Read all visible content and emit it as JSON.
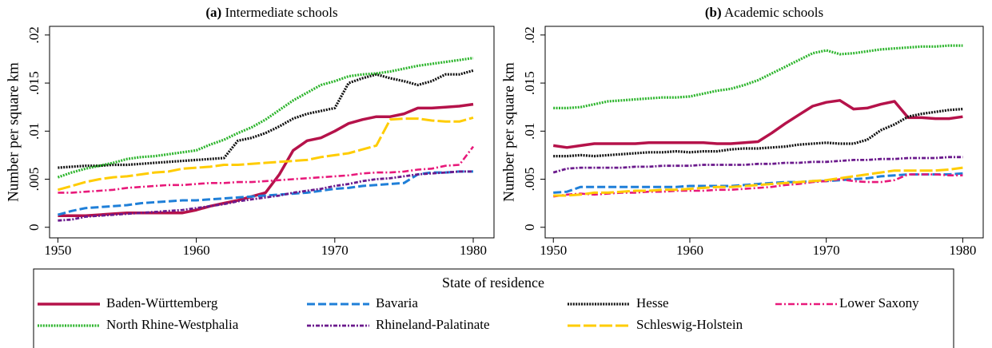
{
  "chart_data": [
    {
      "type": "line",
      "panel": "(a)",
      "title": "Intermediate schools",
      "y_label": "Number per square km",
      "xlim": [
        1949.4,
        1981.5
      ],
      "xticks": [
        1950,
        1960,
        1970,
        1980
      ],
      "ylim": [
        -0.0011,
        0.0209
      ],
      "yticks": [
        0,
        {
          "value": 0.005,
          "label": ".005"
        },
        {
          "value": 0.01,
          "label": ".01"
        },
        {
          "value": 0.015,
          "label": ".015"
        },
        {
          "value": 0.02,
          "label": ".02"
        }
      ],
      "x": [
        1950,
        1951,
        1952,
        1953,
        1954,
        1955,
        1956,
        1957,
        1958,
        1959,
        1960,
        1961,
        1962,
        1963,
        1964,
        1965,
        1966,
        1967,
        1968,
        1969,
        1970,
        1971,
        1972,
        1973,
        1974,
        1975,
        1976,
        1977,
        1978,
        1979,
        1980
      ],
      "series": [
        {
          "name": "Baden-Württemberg",
          "color": "#b5124a",
          "style": "solid",
          "values": [
            0.0012,
            0.0012,
            0.0012,
            0.0013,
            0.0014,
            0.0015,
            0.0015,
            0.0015,
            0.0015,
            0.0015,
            0.0018,
            0.0022,
            0.0025,
            0.0028,
            0.0032,
            0.0036,
            0.0055,
            0.008,
            0.009,
            0.0093,
            0.01,
            0.0108,
            0.0112,
            0.0115,
            0.0115,
            0.0118,
            0.0124,
            0.0124,
            0.0125,
            0.0126,
            0.0128
          ]
        },
        {
          "name": "Bavaria",
          "color": "#1f7fd8",
          "style": "dashed",
          "values": [
            0.0013,
            0.0017,
            0.002,
            0.0021,
            0.0022,
            0.0023,
            0.0025,
            0.0026,
            0.0027,
            0.0028,
            0.0028,
            0.0029,
            0.003,
            0.0031,
            0.0032,
            0.0033,
            0.0034,
            0.0035,
            0.0036,
            0.0038,
            0.004,
            0.0041,
            0.0043,
            0.0044,
            0.0045,
            0.0046,
            0.0055,
            0.0057,
            0.0057,
            0.0058,
            0.0058
          ]
        },
        {
          "name": "Hesse",
          "color": "#111111",
          "style": "dotted",
          "values": [
            0.0062,
            0.0063,
            0.0064,
            0.0064,
            0.0065,
            0.0065,
            0.0066,
            0.0067,
            0.0068,
            0.0069,
            0.007,
            0.0071,
            0.0072,
            0.009,
            0.0093,
            0.0098,
            0.0105,
            0.0113,
            0.0118,
            0.0121,
            0.0124,
            0.015,
            0.0155,
            0.0159,
            0.0155,
            0.0152,
            0.0148,
            0.0152,
            0.0159,
            0.0159,
            0.0163
          ]
        },
        {
          "name": "Lower Saxony",
          "color": "#e8197a",
          "style": "dashdot",
          "values": [
            0.0036,
            0.0036,
            0.0037,
            0.0038,
            0.0039,
            0.0041,
            0.0042,
            0.0043,
            0.0044,
            0.0044,
            0.0045,
            0.0046,
            0.0046,
            0.0047,
            0.0047,
            0.0048,
            0.0049,
            0.005,
            0.0051,
            0.0052,
            0.0053,
            0.0054,
            0.0056,
            0.0057,
            0.0057,
            0.0058,
            0.006,
            0.0061,
            0.0064,
            0.0065,
            0.0084
          ]
        },
        {
          "name": "North Rhine-Westphalia",
          "color": "#2db52d",
          "style": "dotted",
          "values": [
            0.0052,
            0.0057,
            0.0061,
            0.0064,
            0.0067,
            0.0071,
            0.0073,
            0.0074,
            0.0076,
            0.0078,
            0.008,
            0.0086,
            0.0091,
            0.0098,
            0.0104,
            0.0112,
            0.0122,
            0.0132,
            0.014,
            0.0148,
            0.0152,
            0.0157,
            0.0159,
            0.016,
            0.0162,
            0.0165,
            0.0168,
            0.017,
            0.0172,
            0.0174,
            0.0176
          ]
        },
        {
          "name": "Rhineland-Palatinate",
          "color": "#6b1a8c",
          "style": "dashdot2",
          "values": [
            0.0007,
            0.0008,
            0.0011,
            0.0012,
            0.0013,
            0.0014,
            0.0015,
            0.0016,
            0.0017,
            0.0018,
            0.002,
            0.0022,
            0.0024,
            0.0027,
            0.0029,
            0.0031,
            0.0033,
            0.0036,
            0.0038,
            0.004,
            0.0043,
            0.0045,
            0.0048,
            0.005,
            0.0051,
            0.0053,
            0.0055,
            0.0056,
            0.0057,
            0.0058,
            0.0058
          ]
        },
        {
          "name": "Schleswig-Holstein",
          "color": "#ffcc00",
          "style": "longdash",
          "values": [
            0.0039,
            0.0043,
            0.0047,
            0.005,
            0.0052,
            0.0053,
            0.0055,
            0.0057,
            0.0058,
            0.0061,
            0.0062,
            0.0063,
            0.0065,
            0.0065,
            0.0066,
            0.0067,
            0.0068,
            0.0069,
            0.007,
            0.0073,
            0.0075,
            0.0077,
            0.0081,
            0.0085,
            0.0112,
            0.0113,
            0.0113,
            0.0111,
            0.011,
            0.011,
            0.0114
          ]
        }
      ]
    },
    {
      "type": "line",
      "panel": "(b)",
      "title": "Academic schools",
      "y_label": "Number per square km",
      "xlim": [
        1949.4,
        1981.5
      ],
      "xticks": [
        1950,
        1960,
        1970,
        1980
      ],
      "ylim": [
        -0.0011,
        0.0209
      ],
      "yticks": [
        0,
        {
          "value": 0.005,
          "label": ".005"
        },
        {
          "value": 0.01,
          "label": ".01"
        },
        {
          "value": 0.015,
          "label": ".015"
        },
        {
          "value": 0.02,
          "label": ".02"
        }
      ],
      "x": [
        1950,
        1951,
        1952,
        1953,
        1954,
        1955,
        1956,
        1957,
        1958,
        1959,
        1960,
        1961,
        1962,
        1963,
        1964,
        1965,
        1966,
        1967,
        1968,
        1969,
        1970,
        1971,
        1972,
        1973,
        1974,
        1975,
        1976,
        1977,
        1978,
        1979,
        1980
      ],
      "series": [
        {
          "name": "Baden-Württemberg",
          "color": "#b5124a",
          "style": "solid",
          "values": [
            0.0085,
            0.0083,
            0.0085,
            0.0087,
            0.0087,
            0.0087,
            0.0087,
            0.0088,
            0.0088,
            0.0088,
            0.0088,
            0.0088,
            0.0087,
            0.0087,
            0.0088,
            0.0089,
            0.0098,
            0.0108,
            0.0117,
            0.0126,
            0.013,
            0.0132,
            0.0123,
            0.0124,
            0.0128,
            0.0131,
            0.0114,
            0.0114,
            0.0113,
            0.0113,
            0.0115
          ]
        },
        {
          "name": "Bavaria",
          "color": "#1f7fd8",
          "style": "dashed",
          "values": [
            0.0036,
            0.0037,
            0.0042,
            0.0042,
            0.0042,
            0.0042,
            0.0042,
            0.0042,
            0.0042,
            0.0042,
            0.0043,
            0.0043,
            0.0043,
            0.0043,
            0.0044,
            0.0045,
            0.0046,
            0.0047,
            0.0047,
            0.0048,
            0.0048,
            0.0049,
            0.005,
            0.0051,
            0.0053,
            0.0054,
            0.0055,
            0.0055,
            0.0055,
            0.0055,
            0.0056
          ]
        },
        {
          "name": "Hesse",
          "color": "#111111",
          "style": "dotted",
          "values": [
            0.0074,
            0.0074,
            0.0075,
            0.0074,
            0.0075,
            0.0076,
            0.0077,
            0.0078,
            0.0078,
            0.0079,
            0.0078,
            0.0079,
            0.0079,
            0.0081,
            0.0082,
            0.0082,
            0.0083,
            0.0084,
            0.0086,
            0.0087,
            0.0088,
            0.0087,
            0.0087,
            0.0091,
            0.0101,
            0.0107,
            0.0115,
            0.0118,
            0.012,
            0.0122,
            0.0123
          ]
        },
        {
          "name": "Lower Saxony",
          "color": "#e8197a",
          "style": "dashdot",
          "values": [
            0.0032,
            0.0034,
            0.0035,
            0.0034,
            0.0035,
            0.0036,
            0.0036,
            0.0037,
            0.0037,
            0.0038,
            0.0038,
            0.0038,
            0.0039,
            0.0039,
            0.004,
            0.0041,
            0.0042,
            0.0044,
            0.0045,
            0.0047,
            0.0048,
            0.005,
            0.0048,
            0.0047,
            0.0047,
            0.0049,
            0.0055,
            0.0055,
            0.0055,
            0.0054,
            0.0054
          ]
        },
        {
          "name": "North Rhine-Westphalia",
          "color": "#2db52d",
          "style": "dotted",
          "values": [
            0.0124,
            0.0124,
            0.0125,
            0.0128,
            0.0131,
            0.0132,
            0.0133,
            0.0134,
            0.0135,
            0.0135,
            0.0136,
            0.0139,
            0.0142,
            0.0144,
            0.0148,
            0.0153,
            0.016,
            0.0167,
            0.0174,
            0.0181,
            0.0184,
            0.018,
            0.0181,
            0.0183,
            0.0185,
            0.0186,
            0.0187,
            0.0188,
            0.0188,
            0.0189,
            0.0189
          ]
        },
        {
          "name": "Rhineland-Palatinate",
          "color": "#6b1a8c",
          "style": "dashdot2",
          "values": [
            0.0057,
            0.0061,
            0.0062,
            0.0062,
            0.0062,
            0.0062,
            0.0063,
            0.0063,
            0.0064,
            0.0064,
            0.0064,
            0.0065,
            0.0065,
            0.0065,
            0.0065,
            0.0066,
            0.0066,
            0.0067,
            0.0067,
            0.0068,
            0.0068,
            0.0069,
            0.007,
            0.007,
            0.0071,
            0.0071,
            0.0072,
            0.0072,
            0.0072,
            0.0073,
            0.0073
          ]
        },
        {
          "name": "Schleswig-Holstein",
          "color": "#ffcc00",
          "style": "longdash",
          "values": [
            0.0033,
            0.0033,
            0.0034,
            0.0036,
            0.0036,
            0.0037,
            0.0038,
            0.0038,
            0.0039,
            0.0039,
            0.004,
            0.0041,
            0.0042,
            0.0042,
            0.0043,
            0.0044,
            0.0045,
            0.0046,
            0.0047,
            0.0048,
            0.0049,
            0.0051,
            0.0053,
            0.0055,
            0.0057,
            0.0059,
            0.0059,
            0.0059,
            0.0059,
            0.006,
            0.0062
          ]
        }
      ]
    }
  ],
  "legend": {
    "title": "State of residence",
    "position": "bottom",
    "columns": 4
  }
}
